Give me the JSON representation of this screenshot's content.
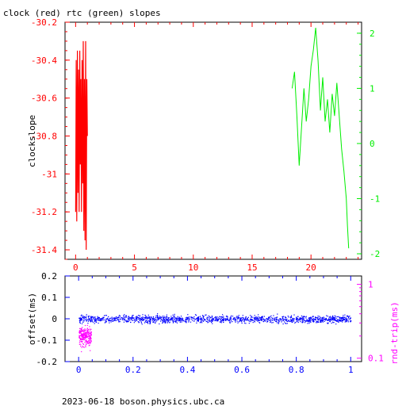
{
  "page": {
    "title": "clock (red) rtc (green) slopes",
    "footer": "2023-06-18  boson.physics.ubc.ca"
  },
  "colors": {
    "red": "#ff0000",
    "green": "#00ee00",
    "blue": "#0000ff",
    "magenta": "#ff00ff",
    "axis": "#000000"
  },
  "chart_data": [
    {
      "type": "line",
      "title": "clock (red) rtc (green) slopes",
      "ylabel": "clockslope",
      "xlim": [
        -0.9,
        24.3
      ],
      "ylim": [
        -31.45,
        -30.2
      ],
      "x_ticks": [
        0,
        5,
        10,
        15,
        20
      ],
      "y_ticks": [
        -31.4,
        -31.2,
        -31,
        -30.8,
        -30.6,
        -30.4,
        -30.2
      ],
      "y_tick_labels": [
        "-31.4",
        "-31.2",
        "-31",
        "-30.8",
        "-30.6",
        "-30.4",
        "-30.2"
      ],
      "y2lim": [
        -2.1,
        2.2
      ],
      "y2_ticks": [
        -2,
        -1,
        0,
        1,
        2
      ],
      "series": [
        {
          "name": "clock",
          "color": "#ff0000",
          "axis": "left",
          "x": [
            0.0,
            0.05,
            0.1,
            0.15,
            0.2,
            0.25,
            0.3,
            0.35,
            0.4,
            0.45,
            0.5,
            0.55,
            0.6,
            0.65,
            0.7,
            0.75,
            0.8,
            0.85,
            0.9,
            0.95,
            1.0
          ],
          "values": [
            -31.2,
            -30.4,
            -31.25,
            -30.35,
            -31.1,
            -30.45,
            -31.2,
            -30.35,
            -30.95,
            -30.5,
            -31.2,
            -30.4,
            -31.05,
            -30.3,
            -31.3,
            -30.5,
            -31.35,
            -30.3,
            -31.4,
            -30.5,
            -30.8
          ]
        },
        {
          "name": "rtc",
          "color": "#00ee00",
          "axis": "right",
          "x": [
            18.4,
            18.6,
            18.8,
            19.0,
            19.2,
            19.4,
            19.6,
            19.8,
            20.0,
            20.2,
            20.4,
            20.6,
            20.8,
            21.0,
            21.2,
            21.4,
            21.6,
            21.8,
            22.0,
            22.2,
            22.4,
            22.6,
            22.8,
            23.0,
            23.1,
            23.2
          ],
          "values": [
            1.0,
            1.3,
            0.5,
            -0.4,
            0.3,
            1.0,
            0.4,
            0.8,
            1.4,
            1.7,
            2.1,
            1.5,
            0.6,
            1.2,
            0.4,
            0.8,
            0.2,
            0.9,
            0.5,
            1.1,
            0.5,
            -0.1,
            -0.5,
            -1.0,
            -1.5,
            -1.9
          ]
        }
      ]
    },
    {
      "type": "scatter",
      "ylabel": "offset(ms)",
      "y2label": "rnd-trip(ms)",
      "xlim": [
        -0.05,
        1.04
      ],
      "ylim": [
        -0.2,
        0.2
      ],
      "x_ticks": [
        0,
        0.2,
        0.4,
        0.6,
        0.8,
        1
      ],
      "y_ticks": [
        -0.2,
        -0.1,
        0,
        0.1,
        0.2
      ],
      "y2_scale": "log",
      "y2_ticks": [
        0.1,
        1
      ],
      "series": [
        {
          "name": "offset",
          "color": "#0000ff",
          "axis": "left",
          "x_range": [
            0.0,
            1.0
          ],
          "center": 0.0,
          "spread": 0.03,
          "count": 1400
        },
        {
          "name": "rnd-trip",
          "color": "#ff00ff",
          "axis": "right",
          "x_range": [
            0.0,
            0.045
          ],
          "center": 0.2,
          "spread": 0.1,
          "count": 260
        }
      ]
    }
  ]
}
